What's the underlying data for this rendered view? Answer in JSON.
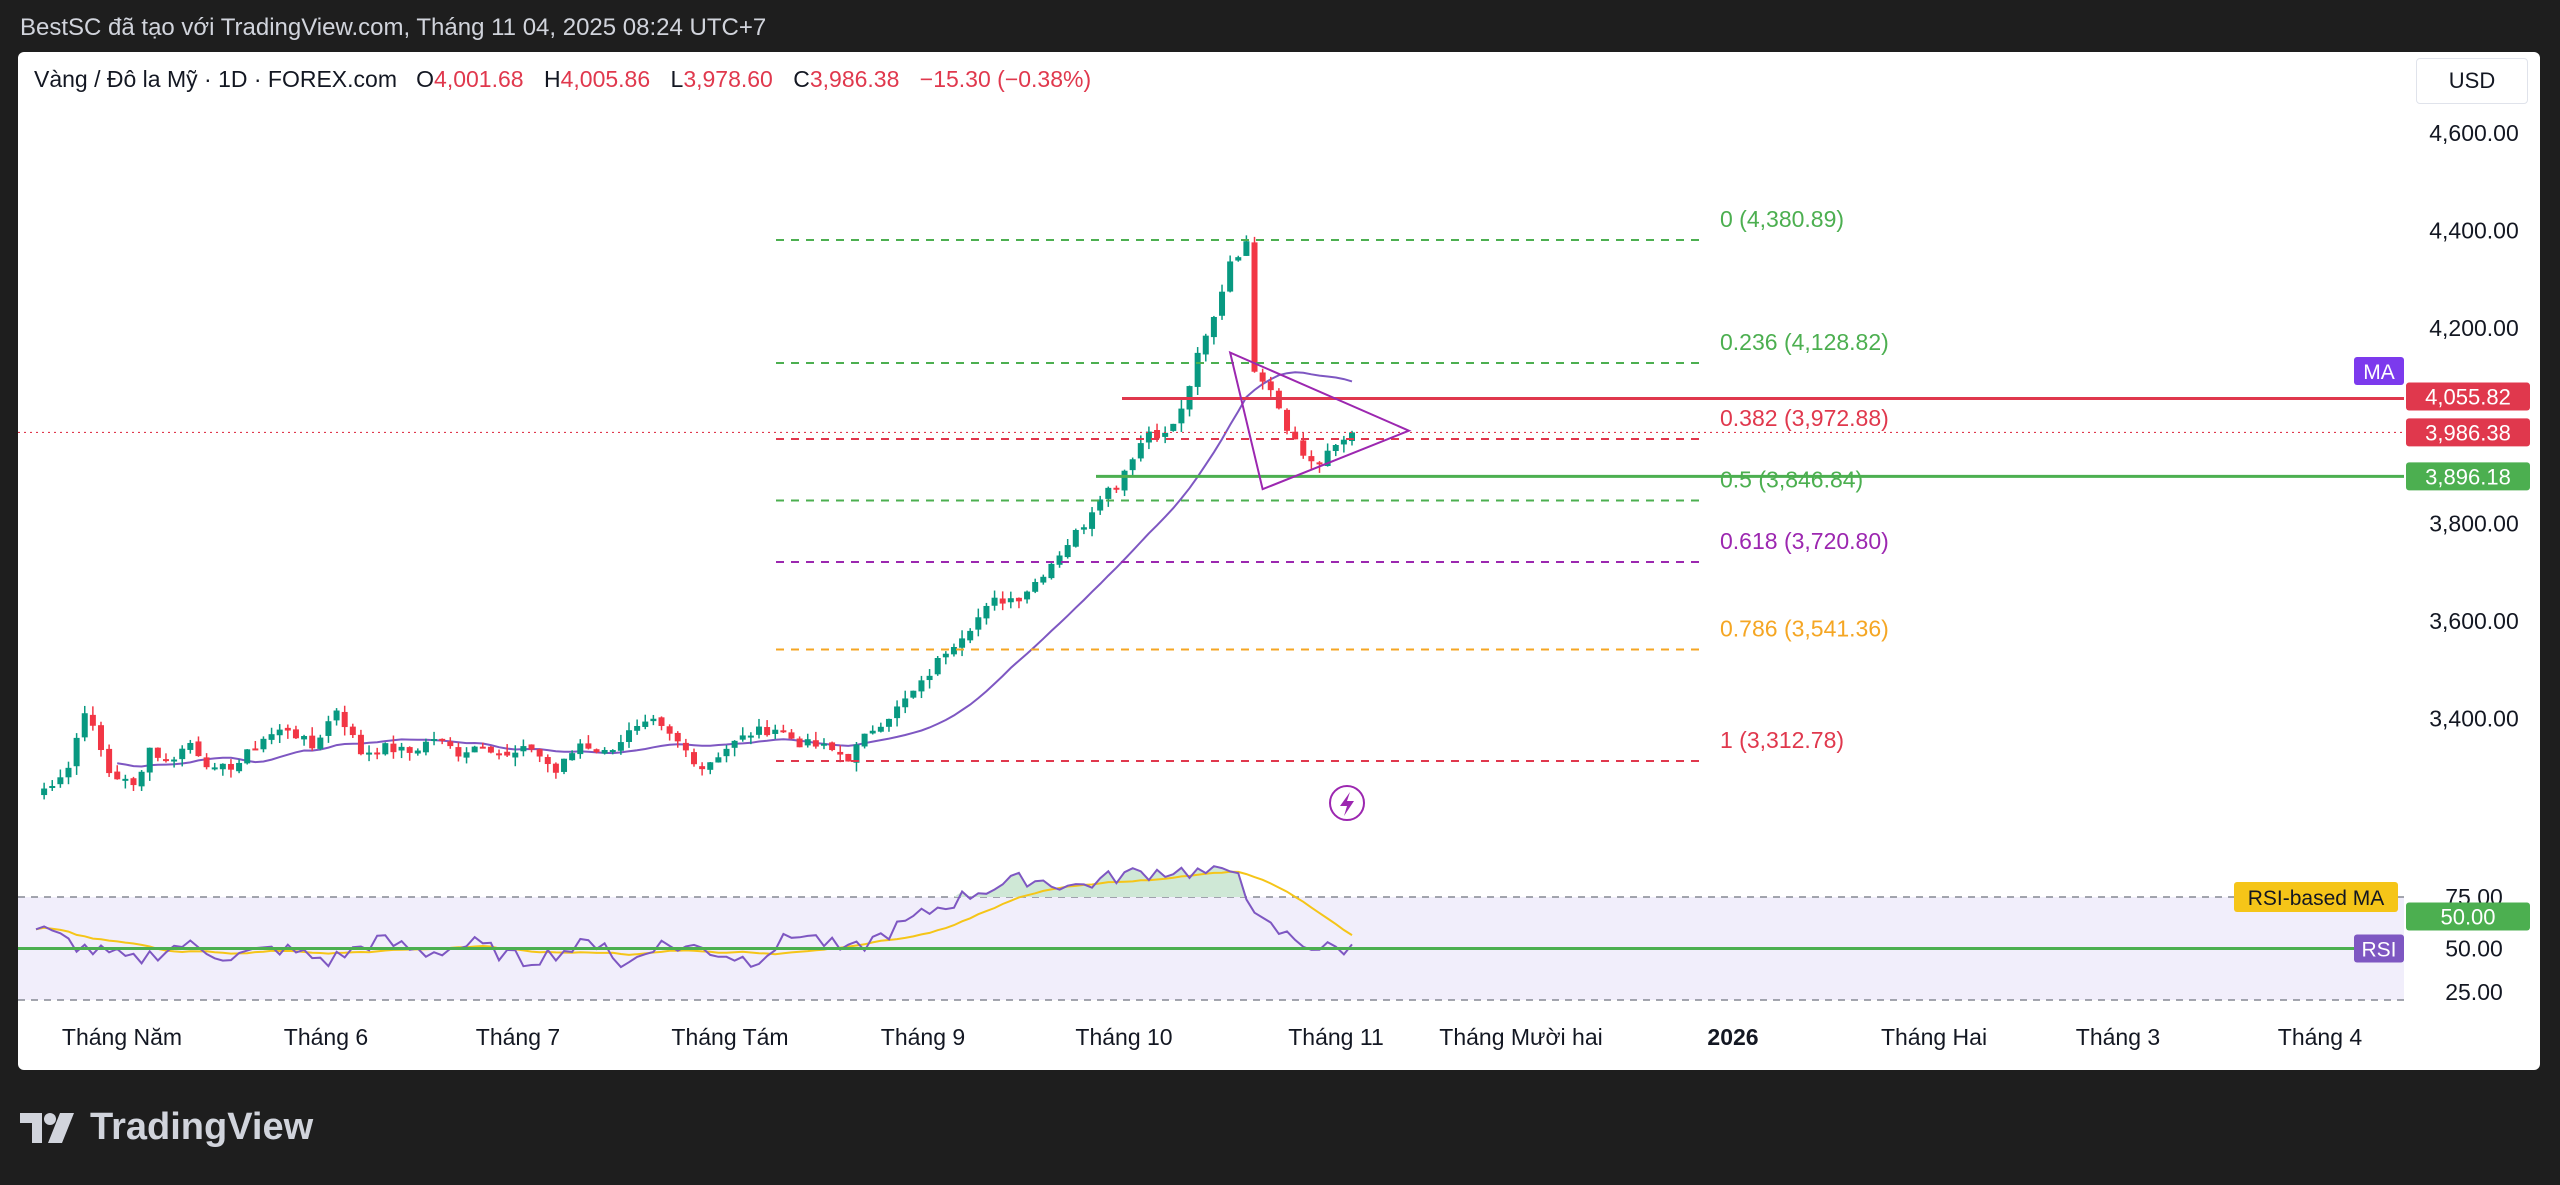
{
  "header": {
    "title": "BestSC đã tạo với TradingView.com, Tháng 11 04, 2025 08:24 UTC+7"
  },
  "symbol": {
    "name": "Vàng / Đô la Mỹ · 1D · FOREX.com",
    "open_label": "O",
    "open": "4,001.68",
    "high_label": "H",
    "high": "4,005.86",
    "low_label": "L",
    "low": "3,978.60",
    "close_label": "C",
    "close": "3,986.38",
    "change": "−15.30 (−0.38%)"
  },
  "currency_button": "USD",
  "brand": "TradingView",
  "colors": {
    "up": "#089981",
    "down": "#f23645",
    "ma": "#7e57c2",
    "rsi": "#7e57c2",
    "rsi_ma": "#f5c518"
  },
  "chart_data": {
    "type": "candlestick",
    "interval": "1D",
    "price_axis": {
      "ticks": [
        "4,600.00",
        "4,400.00",
        "4,200.00",
        "3,800.00",
        "3,600.00",
        "3,400.00"
      ],
      "ylim": [
        3160,
        4740
      ]
    },
    "time_axis": [
      "Tháng Năm",
      "Tháng 6",
      "Tháng 7",
      "Tháng Tám",
      "Tháng 9",
      "Tháng 10",
      "Tháng 11",
      "Tháng Mười hai",
      "2026",
      "Tháng Hai",
      "Tháng 3",
      "Tháng 4"
    ],
    "price_anchors": [
      [
        0,
        3240
      ],
      [
        4,
        3300
      ],
      [
        6,
        3420
      ],
      [
        9,
        3290
      ],
      [
        12,
        3260
      ],
      [
        14,
        3340
      ],
      [
        16,
        3310
      ],
      [
        19,
        3350
      ],
      [
        22,
        3290
      ],
      [
        25,
        3310
      ],
      [
        28,
        3360
      ],
      [
        31,
        3380
      ],
      [
        34,
        3340
      ],
      [
        37,
        3420
      ],
      [
        40,
        3330
      ],
      [
        43,
        3340
      ],
      [
        46,
        3330
      ],
      [
        49,
        3360
      ],
      [
        52,
        3330
      ],
      [
        55,
        3350
      ],
      [
        58,
        3320
      ],
      [
        61,
        3340
      ],
      [
        64,
        3290
      ],
      [
        67,
        3350
      ],
      [
        70,
        3330
      ],
      [
        73,
        3370
      ],
      [
        76,
        3390
      ],
      [
        79,
        3350
      ],
      [
        82,
        3300
      ],
      [
        85,
        3340
      ],
      [
        88,
        3370
      ],
      [
        91,
        3380
      ],
      [
        94,
        3350
      ],
      [
        97,
        3340
      ],
      [
        100,
        3320
      ],
      [
        103,
        3380
      ],
      [
        106,
        3420
      ],
      [
        109,
        3470
      ],
      [
        112,
        3540
      ],
      [
        115,
        3590
      ],
      [
        118,
        3640
      ],
      [
        121,
        3650
      ],
      [
        123,
        3680
      ],
      [
        125,
        3720
      ],
      [
        127,
        3760
      ],
      [
        129,
        3800
      ],
      [
        131,
        3860
      ],
      [
        133,
        3880
      ],
      [
        135,
        3940
      ],
      [
        137,
        3990
      ],
      [
        139,
        3980
      ],
      [
        141,
        4030
      ],
      [
        143,
        4140
      ],
      [
        145,
        4220
      ],
      [
        147,
        4340
      ],
      [
        149,
        4370
      ],
      [
        150,
        4120
      ],
      [
        152,
        4080
      ],
      [
        154,
        4000
      ],
      [
        156,
        3940
      ],
      [
        158,
        3920
      ],
      [
        160,
        3960
      ],
      [
        162,
        3986.38
      ]
    ],
    "fibonacci": [
      {
        "level": "0",
        "price": 4380.89,
        "label": "0 (4,380.89)",
        "color": "#4caf50"
      },
      {
        "level": "0.236",
        "price": 4128.82,
        "label": "0.236 (4,128.82)",
        "color": "#4caf50"
      },
      {
        "level": "0.382",
        "price": 3972.88,
        "label": "0.382 (3,972.88)",
        "color": "#e0384d"
      },
      {
        "level": "0.5",
        "price": 3846.84,
        "label": "0.5 (3,846.84)",
        "color": "#4caf50"
      },
      {
        "level": "0.618",
        "price": 3720.8,
        "label": "0.618 (3,720.80)",
        "color": "#9c27b0"
      },
      {
        "level": "0.786",
        "price": 3541.36,
        "label": "0.786 (3,541.36)",
        "color": "#f5a623"
      },
      {
        "level": "1",
        "price": 3312.78,
        "label": "1 (3,312.78)",
        "color": "#e0384d"
      }
    ],
    "resistance": {
      "price": 4055.82,
      "label": "4,055.82"
    },
    "support": {
      "price": 3896.18,
      "label": "3,896.18"
    },
    "last_price": {
      "price": 3986.38,
      "label": "3,986.38"
    },
    "ma_label": "MA",
    "rsi": {
      "axis_ticks": [
        "75.00",
        "50.00",
        "25.00"
      ],
      "value_label": "50.00",
      "ma_label": "RSI-based MA",
      "rsi_label": "RSI",
      "anchors": [
        [
          0,
          60
        ],
        [
          6,
          50
        ],
        [
          12,
          44
        ],
        [
          18,
          52
        ],
        [
          24,
          46
        ],
        [
          30,
          50
        ],
        [
          36,
          44
        ],
        [
          42,
          54
        ],
        [
          48,
          48
        ],
        [
          54,
          52
        ],
        [
          60,
          44
        ],
        [
          66,
          50
        ],
        [
          70,
          54
        ],
        [
          72,
          40
        ],
        [
          76,
          52
        ],
        [
          82,
          50
        ],
        [
          88,
          44
        ],
        [
          94,
          58
        ],
        [
          100,
          48
        ],
        [
          104,
          56
        ],
        [
          110,
          68
        ],
        [
          116,
          78
        ],
        [
          122,
          84
        ],
        [
          128,
          80
        ],
        [
          134,
          86
        ],
        [
          140,
          88
        ],
        [
          146,
          86
        ],
        [
          148,
          90
        ],
        [
          150,
          64
        ],
        [
          154,
          56
        ],
        [
          158,
          50
        ],
        [
          162,
          50
        ]
      ]
    }
  }
}
